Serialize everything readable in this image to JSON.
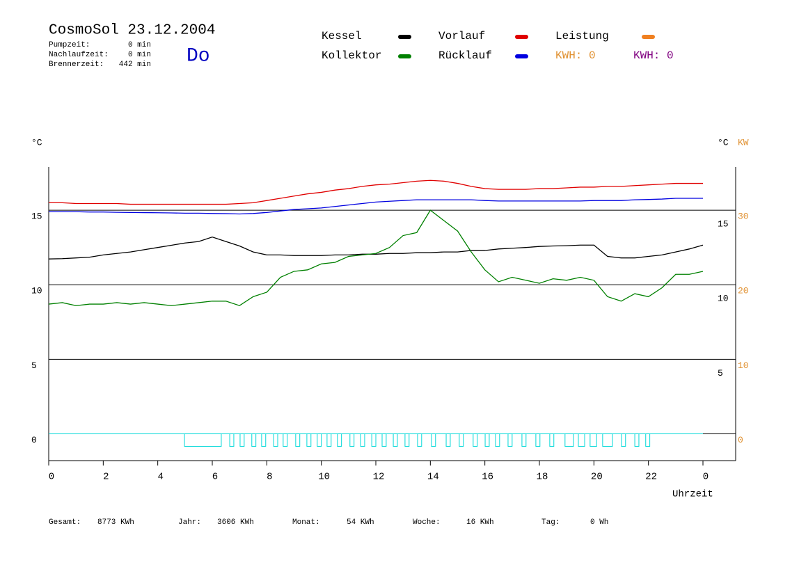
{
  "chart_data": {
    "type": "line",
    "title": "CosmoSol 23.12.2004",
    "stats": [
      {
        "label": "Pumpzeit:",
        "value": "0 min"
      },
      {
        "label": "Nachlaufzeit:",
        "value": "0 min"
      },
      {
        "label": "Brennerzeit:",
        "value": "442 min"
      }
    ],
    "day": "Do",
    "y_label": "°C",
    "y2_label": "°C",
    "y3_label": "KW",
    "x_label": "Uhrzeit",
    "xlim": [
      0,
      25.2
    ],
    "xticks": [
      0,
      2,
      4,
      6,
      8,
      10,
      12,
      14,
      16,
      18,
      20,
      22,
      {
        "value": 24,
        "label": "0"
      }
    ],
    "ylim": [
      -1.8,
      17.9
    ],
    "yticks": [
      0,
      5,
      10,
      15
    ],
    "y2ticks": [
      5,
      10,
      15
    ],
    "y3lim": [
      -3.6,
      35.8
    ],
    "y3ticks": [
      0,
      10,
      20,
      30
    ],
    "y3_color": "#e09030",
    "grid": true,
    "x": [
      0,
      0.5,
      1,
      1.5,
      2,
      2.5,
      3,
      3.5,
      4,
      4.5,
      5,
      5.5,
      6,
      6.5,
      7,
      7.5,
      8,
      8.5,
      9,
      9.5,
      10,
      10.5,
      11,
      11.5,
      12,
      12.5,
      13,
      13.5,
      14,
      14.5,
      15,
      15.5,
      16,
      16.5,
      17,
      17.5,
      18,
      18.5,
      19,
      19.5,
      20,
      20.5,
      21,
      21.5,
      22,
      22.5,
      23,
      23.5,
      24
    ],
    "series": [
      {
        "name": "Kessel",
        "color": "#000000",
        "values": [
          11.73,
          11.75,
          11.8,
          11.85,
          12.0,
          12.1,
          12.2,
          12.35,
          12.5,
          12.65,
          12.8,
          12.9,
          13.2,
          12.9,
          12.6,
          12.2,
          12.0,
          12.0,
          11.96,
          11.96,
          11.96,
          12.0,
          12.0,
          12.05,
          12.05,
          12.1,
          12.1,
          12.15,
          12.15,
          12.2,
          12.2,
          12.3,
          12.3,
          12.4,
          12.45,
          12.5,
          12.57,
          12.6,
          12.62,
          12.66,
          12.66,
          11.9,
          11.8,
          11.8,
          11.9,
          12.0,
          12.2,
          12.4,
          12.66
        ]
      },
      {
        "name": "Kollektor",
        "color": "#008000",
        "values": [
          8.7,
          8.8,
          8.6,
          8.7,
          8.7,
          8.8,
          8.7,
          8.8,
          8.7,
          8.6,
          8.7,
          8.8,
          8.9,
          8.9,
          8.6,
          9.2,
          9.5,
          10.5,
          10.9,
          11.0,
          11.4,
          11.5,
          11.9,
          12.0,
          12.1,
          12.5,
          13.3,
          13.5,
          15.0,
          14.3,
          13.6,
          12.2,
          11.0,
          10.2,
          10.5,
          10.3,
          10.1,
          10.4,
          10.3,
          10.5,
          10.3,
          9.2,
          8.9,
          9.4,
          9.2,
          9.8,
          10.7,
          10.7,
          10.9
        ]
      },
      {
        "name": "Vorlauf",
        "color": "#e00000",
        "values": [
          15.5,
          15.5,
          15.45,
          15.45,
          15.45,
          15.45,
          15.4,
          15.4,
          15.4,
          15.4,
          15.4,
          15.4,
          15.4,
          15.4,
          15.45,
          15.5,
          15.65,
          15.8,
          15.95,
          16.1,
          16.2,
          16.35,
          16.45,
          16.6,
          16.7,
          16.75,
          16.85,
          16.95,
          17.0,
          16.95,
          16.8,
          16.6,
          16.45,
          16.4,
          16.4,
          16.4,
          16.45,
          16.45,
          16.5,
          16.55,
          16.55,
          16.6,
          16.6,
          16.65,
          16.7,
          16.75,
          16.8,
          16.8,
          16.8
        ]
      },
      {
        "name": "Rücklauf",
        "color": "#0000e0",
        "values": [
          14.9,
          14.9,
          14.9,
          14.88,
          14.88,
          14.86,
          14.85,
          14.84,
          14.83,
          14.82,
          14.8,
          14.8,
          14.78,
          14.77,
          14.75,
          14.78,
          14.85,
          14.95,
          15.05,
          15.1,
          15.15,
          15.25,
          15.35,
          15.45,
          15.55,
          15.6,
          15.65,
          15.7,
          15.7,
          15.7,
          15.7,
          15.7,
          15.65,
          15.62,
          15.62,
          15.62,
          15.62,
          15.62,
          15.62,
          15.62,
          15.65,
          15.65,
          15.65,
          15.7,
          15.72,
          15.75,
          15.8,
          15.8,
          15.8
        ]
      }
    ],
    "power": {
      "name": "Leistung",
      "color": "#f08020"
    },
    "kwh_labels": [
      {
        "text": "KWH: 0",
        "color": "#e09030"
      },
      {
        "text": "KWH: 0",
        "color": "#800080"
      }
    ],
    "pump": {
      "color": "#00d8d8",
      "intervals": [
        [
          4.98,
          6.33
        ],
        [
          6.64,
          6.79
        ],
        [
          7.02,
          7.17
        ],
        [
          7.45,
          7.6
        ],
        [
          7.81,
          7.96
        ],
        [
          8.25,
          8.4
        ],
        [
          8.6,
          8.75
        ],
        [
          9.06,
          9.21
        ],
        [
          9.47,
          9.62
        ],
        [
          9.85,
          10.0
        ],
        [
          10.21,
          10.36
        ],
        [
          10.59,
          10.74
        ],
        [
          11.05,
          11.2
        ],
        [
          11.44,
          11.59
        ],
        [
          11.85,
          12.0
        ],
        [
          12.23,
          12.38
        ],
        [
          12.64,
          12.79
        ],
        [
          13.07,
          13.22
        ],
        [
          13.53,
          13.68
        ],
        [
          14.04,
          14.19
        ],
        [
          14.58,
          14.73
        ],
        [
          15.06,
          15.21
        ],
        [
          15.57,
          15.72
        ],
        [
          16.01,
          16.16
        ],
        [
          16.39,
          16.54
        ],
        [
          16.85,
          17.0
        ],
        [
          17.36,
          17.51
        ],
        [
          17.87,
          18.02
        ],
        [
          18.38,
          18.53
        ],
        [
          18.94,
          19.25
        ],
        [
          19.43,
          19.66
        ],
        [
          19.86,
          20.1
        ],
        [
          20.32,
          20.68
        ],
        [
          21.01,
          21.16
        ],
        [
          21.5,
          21.65
        ],
        [
          21.9,
          22.05
        ]
      ]
    },
    "totals": [
      {
        "label": "Gesamt:",
        "value": "8773 KWh"
      },
      {
        "label": "Jahr:",
        "value": "3606 KWh"
      },
      {
        "label": "Monat:",
        "value": "54 KWh"
      },
      {
        "label": "Woche:",
        "value": "16 KWh"
      },
      {
        "label": "Tag:",
        "value": "0 Wh"
      }
    ]
  }
}
